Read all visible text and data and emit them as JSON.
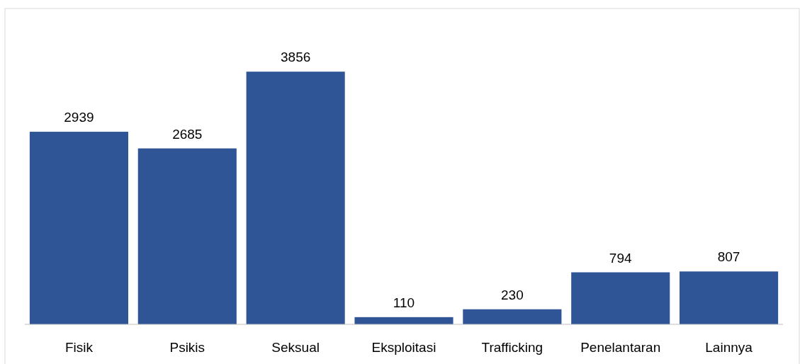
{
  "chart_data": {
    "type": "bar",
    "categories": [
      "Fisik",
      "Psikis",
      "Seksual",
      "Eksploitasi",
      "Trafficking",
      "Penelantaran",
      "Lainnya"
    ],
    "values": [
      2939,
      2685,
      3856,
      110,
      230,
      794,
      807
    ],
    "color": "#2f5597",
    "data_labels": true
  }
}
